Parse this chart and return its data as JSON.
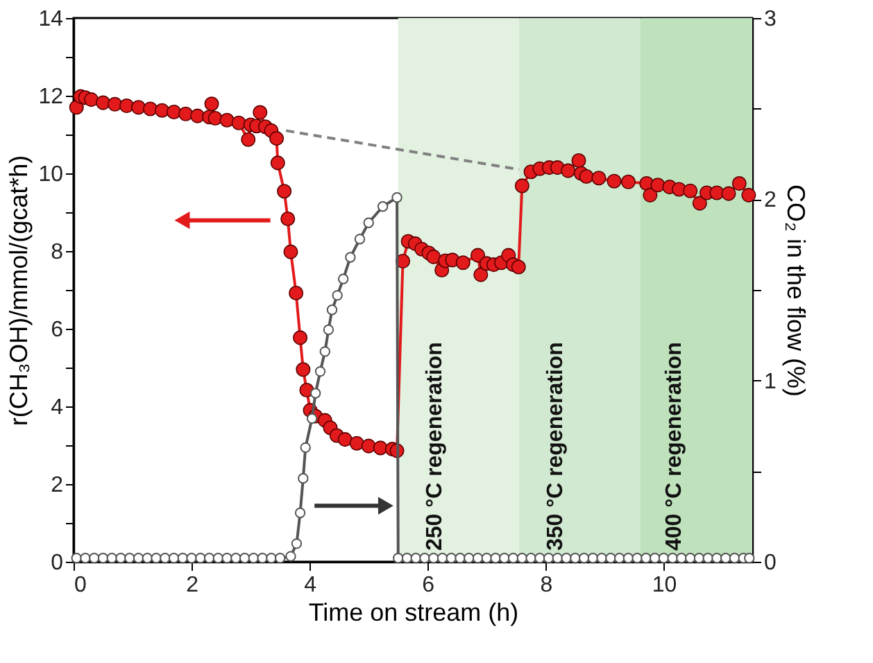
{
  "chart_data": {
    "type": "line",
    "xlabel": "Time on stream (h)",
    "ylabel": "r(CH₃OH)/mmol/(gcat*h)",
    "y2label": "CO₂ in the flow (%)",
    "xlim": [
      0,
      11.5
    ],
    "xticks": [
      0,
      2,
      4,
      6,
      8,
      10
    ],
    "ylim": [
      0,
      14
    ],
    "yticks": [
      0,
      {
        "value": 1,
        "label": null
      },
      2,
      {
        "value": 3,
        "label": null
      },
      4,
      {
        "value": 5,
        "label": null
      },
      6,
      {
        "value": 7,
        "label": null
      },
      8,
      {
        "value": 9,
        "label": null
      },
      10,
      {
        "value": 11,
        "label": null
      },
      12,
      {
        "value": 13,
        "label": null
      },
      14
    ],
    "y2lim": [
      0,
      3
    ],
    "y2ticks": [
      0,
      {
        "value": 0.5,
        "label": null
      },
      1,
      {
        "value": 1.5,
        "label": null
      },
      2,
      {
        "value": 2.5,
        "label": null
      },
      3
    ],
    "grid": false,
    "legend": false,
    "marker": "circle",
    "line_style": "solid",
    "bands": [
      {
        "axis": "x",
        "from": 5.5,
        "to": 7.55,
        "label": "250 °C regeneration",
        "color": "#e3f1e1"
      },
      {
        "axis": "x",
        "from": 7.55,
        "to": 9.6,
        "label": "350 °C regeneration",
        "color": "#d1e9d0"
      },
      {
        "axis": "x",
        "from": 9.6,
        "to": 11.5,
        "label": "400 °C regeneration",
        "color": "#bfe2bd"
      }
    ],
    "series": [
      {
        "color": "#e31a1c",
        "axis": "y",
        "x": [
          0.05,
          0.12,
          0.2,
          0.3,
          0.5,
          0.7,
          0.9,
          1.1,
          1.3,
          1.5,
          1.7,
          1.9,
          2.1,
          2.3,
          2.34,
          2.4,
          2.6,
          2.8,
          2.96,
          3.0,
          3.1,
          3.16,
          3.25,
          3.35,
          3.44,
          3.46,
          3.57,
          3.63,
          3.68,
          3.77,
          3.84,
          3.89,
          3.95,
          4.01,
          4.1,
          4.26,
          4.35,
          4.46,
          4.6,
          4.8,
          5.0,
          5.2,
          5.4,
          5.48,
          5.58,
          5.67,
          5.79,
          5.9,
          6.02,
          6.1,
          6.24,
          6.3,
          6.42,
          6.6,
          6.85,
          6.9,
          7.0,
          7.12,
          7.25,
          7.37,
          7.45,
          7.54,
          7.6,
          7.75,
          7.9,
          8.06,
          8.2,
          8.38,
          8.56,
          8.6,
          8.69,
          8.9,
          9.16,
          9.4,
          9.71,
          9.77,
          9.9,
          10.1,
          10.26,
          10.45,
          10.61,
          10.73,
          10.9,
          11.1,
          11.28,
          11.44
        ],
        "values": [
          11.7,
          11.98,
          11.95,
          11.9,
          11.82,
          11.78,
          11.74,
          11.7,
          11.66,
          11.62,
          11.58,
          11.53,
          11.48,
          11.45,
          11.79,
          11.42,
          11.37,
          11.3,
          10.87,
          11.25,
          11.22,
          11.57,
          11.2,
          11.1,
          10.9,
          10.27,
          9.54,
          8.83,
          7.98,
          6.92,
          5.77,
          4.95,
          4.42,
          3.9,
          3.75,
          3.64,
          3.45,
          3.25,
          3.15,
          3.05,
          2.98,
          2.93,
          2.9,
          2.86,
          7.74,
          8.25,
          8.19,
          8.05,
          7.95,
          7.85,
          7.51,
          7.75,
          7.77,
          7.7,
          7.89,
          7.39,
          7.68,
          7.65,
          7.7,
          7.89,
          7.65,
          7.59,
          9.68,
          10.04,
          10.12,
          10.15,
          10.15,
          10.07,
          10.33,
          10.0,
          9.92,
          9.88,
          9.8,
          9.78,
          9.74,
          9.44,
          9.7,
          9.65,
          9.59,
          9.55,
          9.23,
          9.5,
          9.5,
          9.48,
          9.74,
          9.44
        ]
      },
      {
        "color": "#555555",
        "axis": "y2",
        "x": [
          0.05,
          0.2,
          0.35,
          0.5,
          0.65,
          0.8,
          0.95,
          1.1,
          1.25,
          1.4,
          1.55,
          1.7,
          1.85,
          2.0,
          2.15,
          2.3,
          2.45,
          2.6,
          2.75,
          2.9,
          3.05,
          3.2,
          3.35,
          3.5,
          3.68,
          3.78,
          3.84,
          3.89,
          3.93,
          4.04,
          4.1,
          4.18,
          4.26,
          4.32,
          4.38,
          4.47,
          4.57,
          4.69,
          4.85,
          5.0,
          5.24,
          5.48,
          5.5,
          5.65,
          5.8,
          5.95,
          6.1,
          6.25,
          6.4,
          6.55,
          6.7,
          6.85,
          7.0,
          7.15,
          7.3,
          7.45,
          7.6,
          7.75,
          7.9,
          8.05,
          8.2,
          8.35,
          8.5,
          8.65,
          8.8,
          8.95,
          9.1,
          9.25,
          9.4,
          9.55,
          9.7,
          9.85,
          10.0,
          10.15,
          10.3,
          10.45,
          10.6,
          10.75,
          10.9,
          11.05,
          11.2,
          11.35,
          11.45
        ],
        "values": [
          0.02,
          0.02,
          0.02,
          0.02,
          0.02,
          0.02,
          0.02,
          0.02,
          0.02,
          0.02,
          0.02,
          0.02,
          0.02,
          0.02,
          0.02,
          0.02,
          0.02,
          0.02,
          0.02,
          0.02,
          0.02,
          0.02,
          0.02,
          0.02,
          0.03,
          0.1,
          0.27,
          0.46,
          0.63,
          0.79,
          0.93,
          1.05,
          1.16,
          1.28,
          1.39,
          1.47,
          1.56,
          1.68,
          1.78,
          1.87,
          1.96,
          2.01,
          0.02,
          0.02,
          0.02,
          0.02,
          0.02,
          0.02,
          0.02,
          0.02,
          0.02,
          0.02,
          0.02,
          0.02,
          0.02,
          0.02,
          0.02,
          0.02,
          0.02,
          0.02,
          0.02,
          0.02,
          0.02,
          0.02,
          0.02,
          0.02,
          0.02,
          0.02,
          0.02,
          0.02,
          0.02,
          0.02,
          0.02,
          0.02,
          0.02,
          0.02,
          0.02,
          0.02,
          0.02,
          0.02,
          0.02,
          0.02,
          0.02
        ]
      },
      {
        "type": "line",
        "color": "#808080",
        "axis": "y",
        "marker": "none",
        "line_style": "dashed",
        "x": [
          3.6,
          7.55
        ],
        "values": [
          11.1,
          10.1
        ]
      }
    ]
  }
}
